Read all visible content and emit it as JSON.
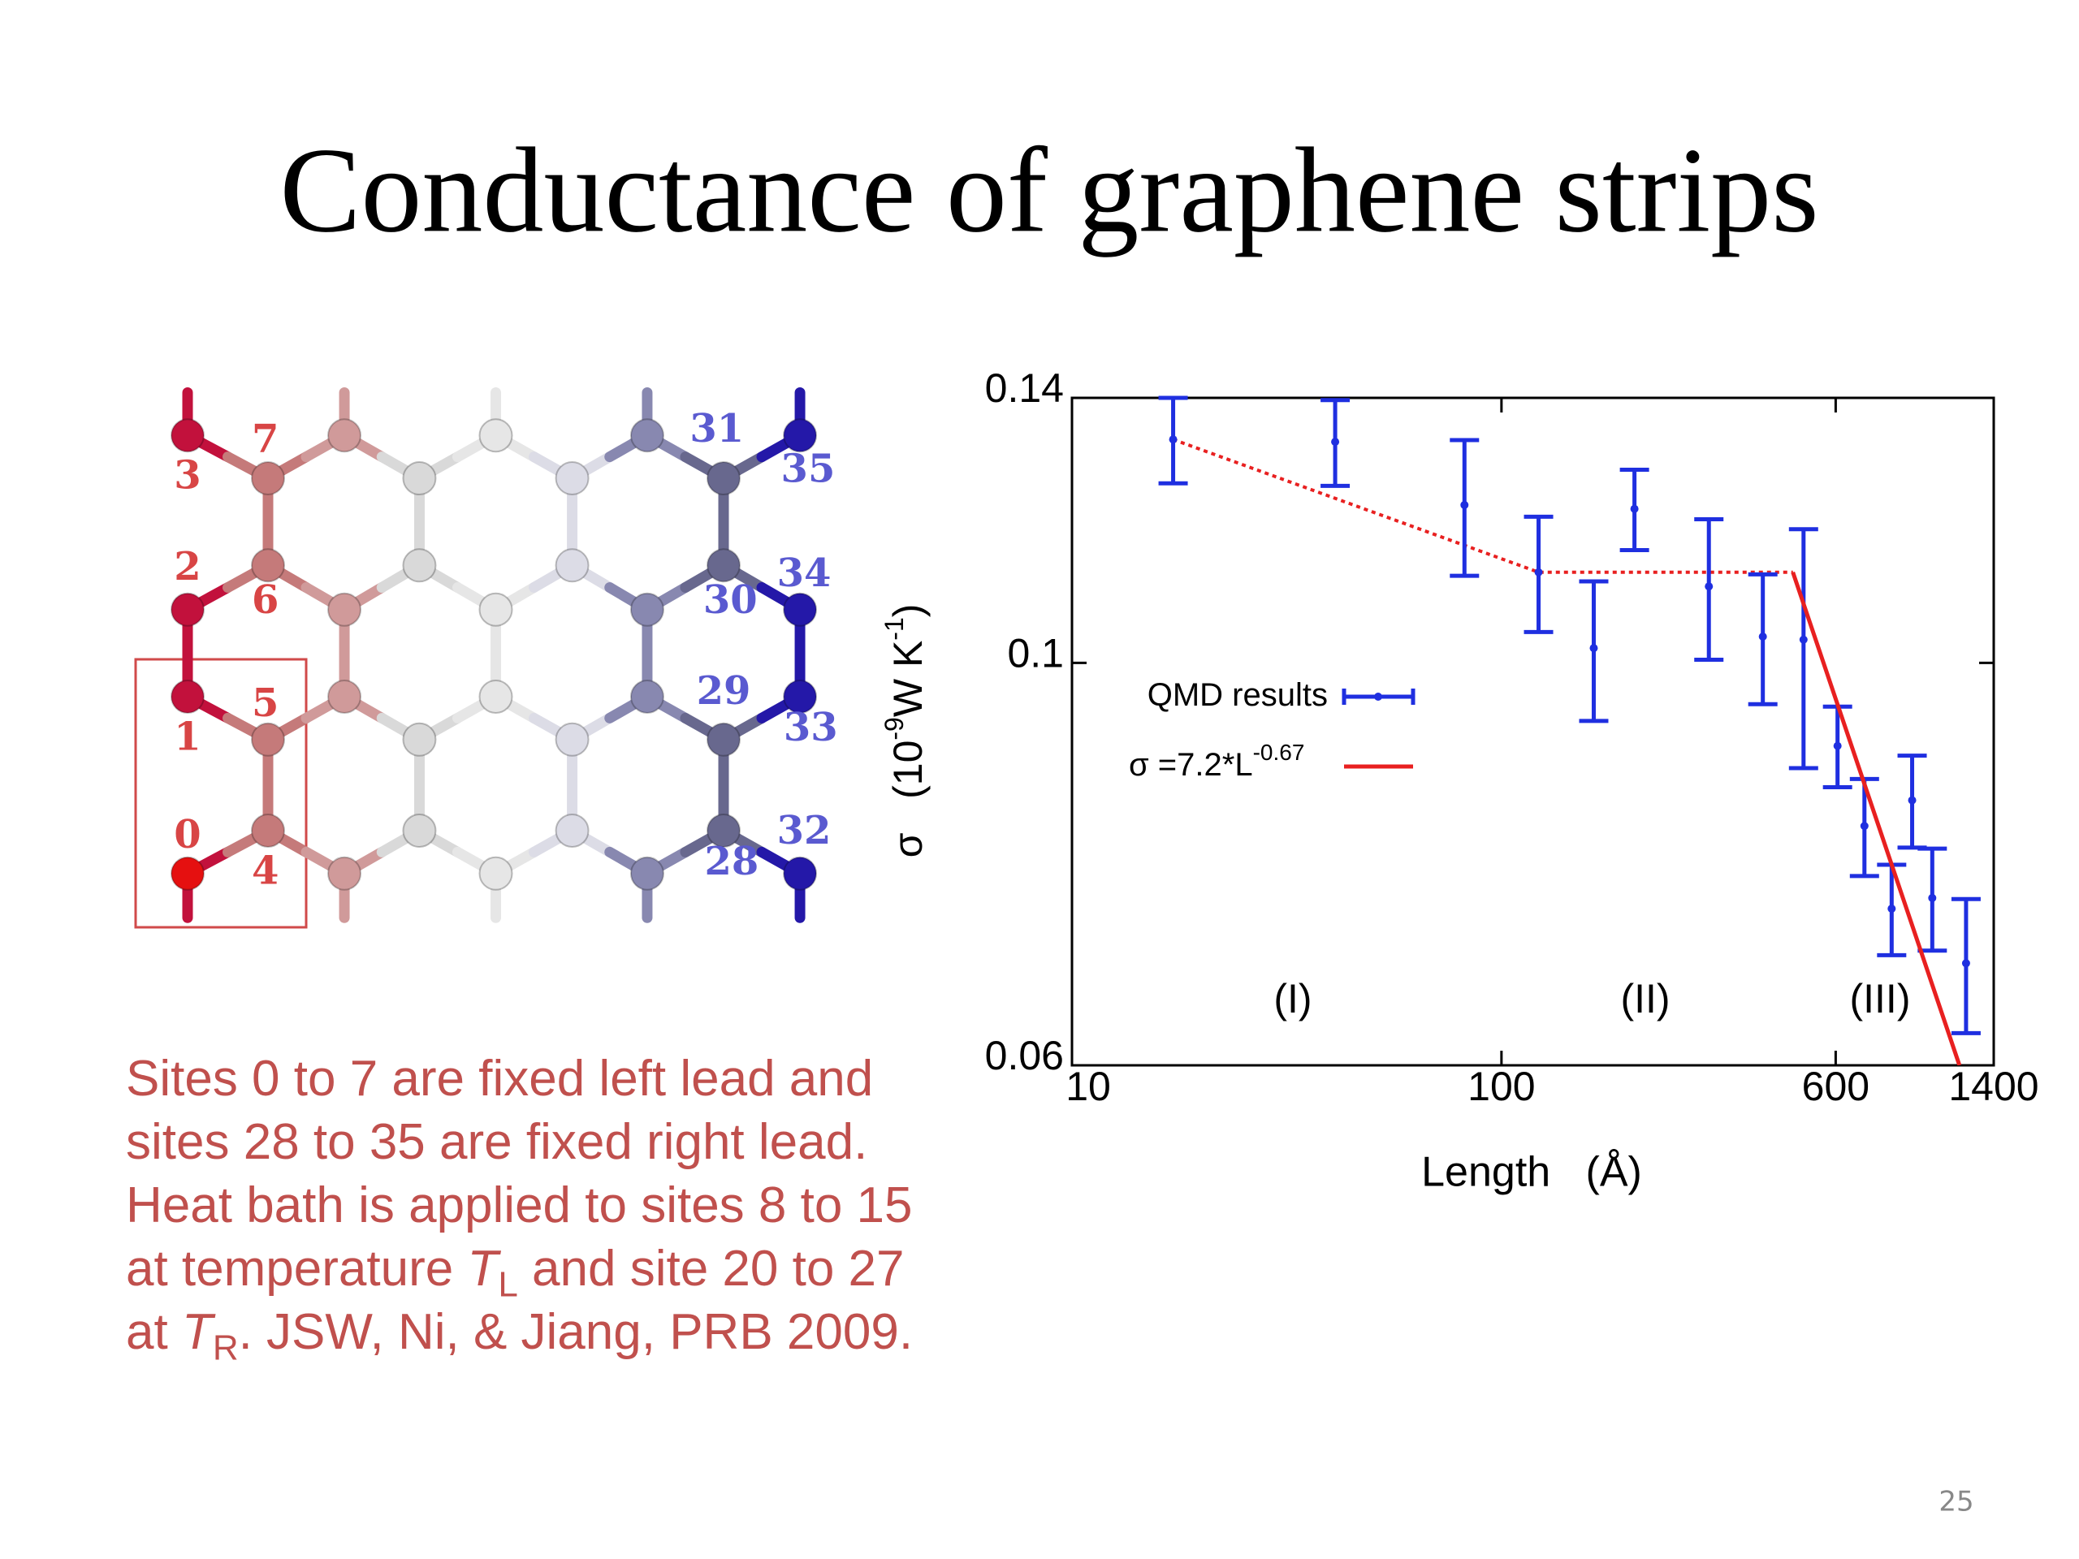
{
  "title": "Conductance of graphene strips",
  "diagram": {
    "labels": [
      "3",
      "7",
      "2",
      "6",
      "1",
      "5",
      "0",
      "4",
      "31",
      "35",
      "34",
      "30",
      "29",
      "33",
      "32",
      "28"
    ]
  },
  "caption": [
    "Sites 0 to 7 are fixed left lead and sites 28 to 35 are fixed right lead.  Heat bath is applied to sites 8 to 15 at temperature ",
    "T",
    "L",
    " and site 20 to 27 at ",
    "T",
    "R",
    ". JSW, Ni, & Jiang, PRB 2009."
  ],
  "page_number": "25",
  "chart_data": {
    "type": "errorbar",
    "xlabel": "Length   (Å)",
    "ylabel": [
      "σ   (10",
      "-9",
      "W K",
      "-1",
      ")"
    ],
    "xscale": "log",
    "yscale": "log",
    "xlim": [
      10,
      1400
    ],
    "ylim": [
      0.06,
      0.14
    ],
    "xticks": [
      10,
      100,
      600,
      1400
    ],
    "yticks": [
      0.06,
      0.1,
      0.14
    ],
    "annotations": [
      "(I)",
      "(II)",
      "(III)"
    ],
    "series": [
      {
        "name": "QMD results",
        "color": "#1f2fe0",
        "x": [
          17.2,
          41,
          82,
          122,
          164,
          204,
          304,
          406,
          505,
          606,
          700,
          810,
          904,
          1007,
          1207
        ],
        "values": [
          0.1328,
          0.1324,
          0.1222,
          0.1122,
          0.1019,
          0.1216,
          0.1102,
          0.1034,
          0.103,
          0.09,
          0.0813,
          0.0732,
          0.084,
          0.0742,
          0.0683
        ],
        "errors": [
          0.0072,
          0.0072,
          0.0105,
          0.0082,
          0.009,
          0.0062,
          0.0098,
          0.0085,
          0.0155,
          0.0046,
          0.005,
          0.0042,
          0.0049,
          0.0048,
          0.0058
        ]
      },
      {
        "name": "σ =7.2*L",
        "name_superscript": "-0.67",
        "color": "#e82020",
        "x": [
          477,
          1165
        ],
        "values": [
          0.1122,
          0.06
        ]
      }
    ],
    "guide": {
      "color": "#e82020",
      "dotted": true,
      "x": [
        17.2,
        122,
        477
      ],
      "values": [
        0.1328,
        0.1122,
        0.1122
      ]
    }
  }
}
